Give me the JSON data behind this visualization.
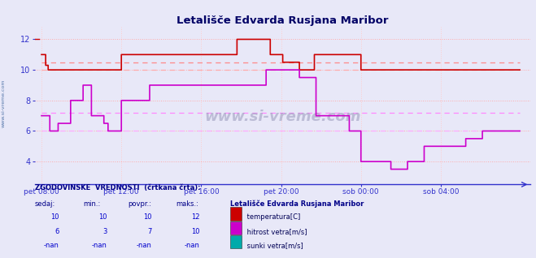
{
  "title": "Letališče Edvarda Rusjana Maribor",
  "bg_color": "#e8e8f8",
  "plot_bg_color": "#e8e8f8",
  "grid_color_h": "#ffaaaa",
  "grid_color_v": "#ffcccc",
  "axis_color": "#3333cc",
  "title_color": "#000066",
  "watermark": "www.si-vreme.com",
  "ylim": [
    2.5,
    12.8
  ],
  "yticks": [
    4,
    6,
    8,
    10,
    12
  ],
  "xtick_labels": [
    "pet 08:00",
    "pet 12:00",
    "pet 16:00",
    "pet 20:00",
    "sob 00:00",
    "sob 04:00"
  ],
  "xtick_positions": [
    0,
    96,
    192,
    288,
    384,
    480
  ],
  "total_points": 576,
  "temp_color": "#cc0000",
  "temp_avg_color": "#ff8888",
  "temp_avg2_color": "#ffaaaa",
  "wind_color": "#cc00cc",
  "wind_avg_color": "#ff88ff",
  "wind_avg2_color": "#ffaaff",
  "gust_color": "#00aaaa",
  "legend_station": "Letališče Edvarda Rusjana Maribor",
  "legend_items": [
    {
      "label": " temperatura[C]",
      "color": "#cc0000"
    },
    {
      "label": " hitrost vetra[m/s]",
      "color": "#cc00cc"
    },
    {
      "label": " sunki vetra[m/s]",
      "color": "#00aaaa"
    }
  ],
  "footer_text": "ZGODOVINSKE  VREDNOSTI  (črtkana črta):",
  "col_headers": [
    "sedaj:",
    "min.:",
    "povpr.:",
    "maks.:"
  ],
  "col_values": [
    [
      "10",
      "10",
      "10",
      "12"
    ],
    [
      "6",
      "3",
      "7",
      "10"
    ],
    [
      "-nan",
      "-nan",
      "-nan",
      "-nan"
    ]
  ],
  "icon_colors": [
    [
      "#cc0000",
      "#ff0000",
      "#880000",
      "#000000"
    ],
    [
      "#cc00cc",
      "#ff00ff",
      "#880088",
      "#000066"
    ],
    [
      "#00aaaa",
      "#ffff00",
      "#00cccc",
      "#000066"
    ]
  ]
}
